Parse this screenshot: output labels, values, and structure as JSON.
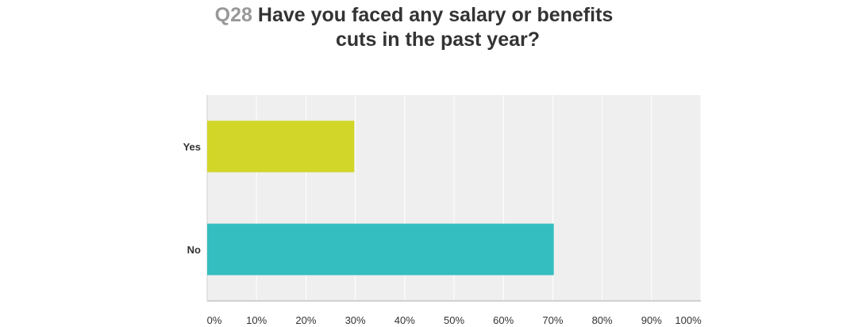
{
  "question": {
    "number": "Q28",
    "line1": "Have you faced any salary or benefits",
    "line2": "cuts in the past year?"
  },
  "colors": {
    "plot_background": "#efefef",
    "grid": "#ffffff",
    "axis": "#d0d0d0",
    "bar_yes": "#d1d628",
    "bar_no": "#34bec0"
  },
  "chart_data": {
    "type": "bar",
    "orientation": "horizontal",
    "title": "Q28 Have you faced any salary or benefits cuts in the past year?",
    "categories": [
      "Yes",
      "No"
    ],
    "values": [
      29.8,
      70.2
    ],
    "bar_colors": [
      "#d1d628",
      "#34bec0"
    ],
    "xlim": [
      0,
      100
    ],
    "x_ticks": [
      "0%",
      "10%",
      "20%",
      "30%",
      "40%",
      "50%",
      "60%",
      "70%",
      "80%",
      "90%",
      "100%"
    ],
    "grid": true,
    "legend": "none"
  }
}
